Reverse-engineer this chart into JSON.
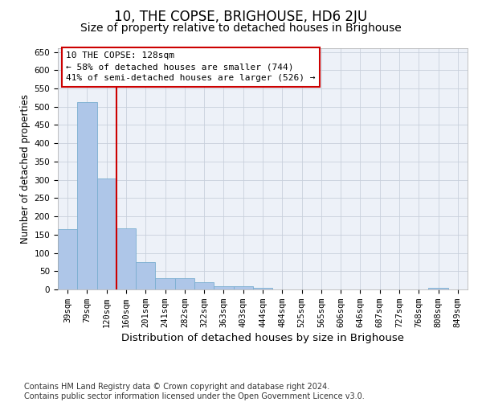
{
  "title": "10, THE COPSE, BRIGHOUSE, HD6 2JU",
  "subtitle": "Size of property relative to detached houses in Brighouse",
  "xlabel": "Distribution of detached houses by size in Brighouse",
  "ylabel": "Number of detached properties",
  "categories": [
    "39sqm",
    "79sqm",
    "120sqm",
    "160sqm",
    "201sqm",
    "241sqm",
    "282sqm",
    "322sqm",
    "363sqm",
    "403sqm",
    "444sqm",
    "484sqm",
    "525sqm",
    "565sqm",
    "606sqm",
    "646sqm",
    "687sqm",
    "727sqm",
    "768sqm",
    "808sqm",
    "849sqm"
  ],
  "values": [
    165,
    513,
    303,
    168,
    75,
    31,
    31,
    20,
    9,
    9,
    5,
    0,
    0,
    0,
    0,
    0,
    0,
    0,
    0,
    5,
    0
  ],
  "bar_color": "#aec6e8",
  "bar_edge_color": "#7aaed0",
  "vline_color": "#cc0000",
  "vline_x_index": 2,
  "annotation_line1": "10 THE COPSE: 128sqm",
  "annotation_line2": "← 58% of detached houses are smaller (744)",
  "annotation_line3": "41% of semi-detached houses are larger (526) →",
  "annotation_box_color": "#ffffff",
  "annotation_box_edge_color": "#cc0000",
  "ylim": [
    0,
    660
  ],
  "yticks": [
    0,
    50,
    100,
    150,
    200,
    250,
    300,
    350,
    400,
    450,
    500,
    550,
    600,
    650
  ],
  "grid_color": "#c8d0dc",
  "background_color": "#edf1f8",
  "footer_line1": "Contains HM Land Registry data © Crown copyright and database right 2024.",
  "footer_line2": "Contains public sector information licensed under the Open Government Licence v3.0.",
  "title_fontsize": 12,
  "subtitle_fontsize": 10,
  "xlabel_fontsize": 9.5,
  "ylabel_fontsize": 8.5,
  "tick_fontsize": 7.5,
  "annotation_fontsize": 8,
  "footer_fontsize": 7
}
